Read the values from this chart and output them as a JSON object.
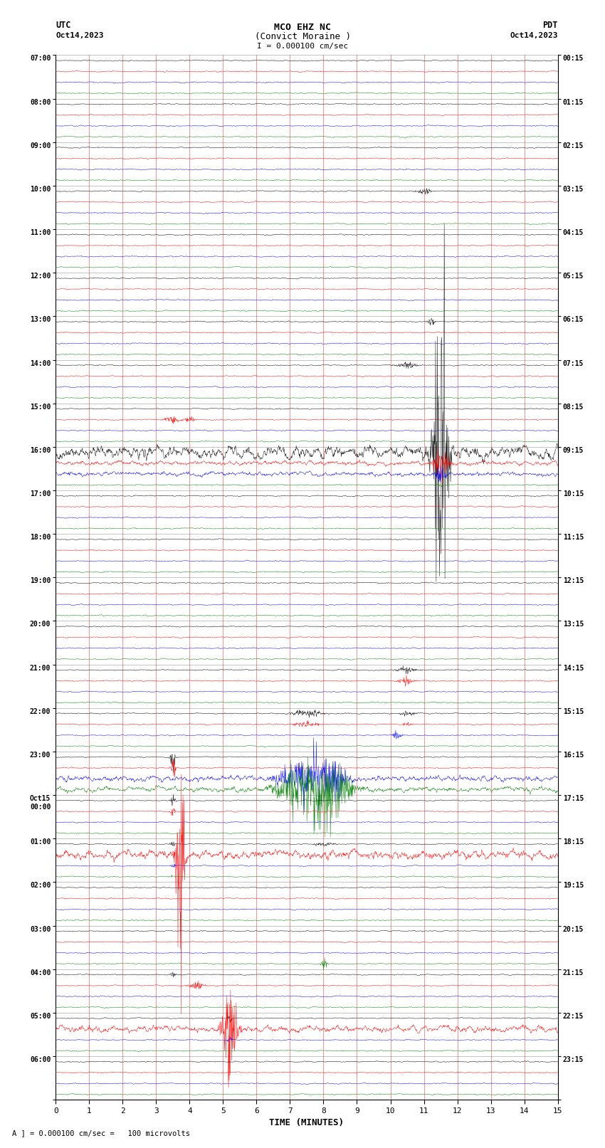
{
  "title_line1": "MCO EHZ NC",
  "title_line2": "(Convict Moraine )",
  "title_line3": "I = 0.000100 cm/sec",
  "left_header": "UTC",
  "left_date": "Oct14,2023",
  "right_header": "PDT",
  "right_date": "Oct14,2023",
  "xlabel": "TIME (MINUTES)",
  "footer": "A ] = 0.000100 cm/sec =   100 microvolts",
  "xmin": 0,
  "xmax": 15,
  "background_color": "#ffffff",
  "trace_colors": [
    "black",
    "red",
    "blue",
    "green"
  ],
  "hour_labels_left": [
    "07:00",
    "08:00",
    "09:00",
    "10:00",
    "11:00",
    "12:00",
    "13:00",
    "14:00",
    "15:00",
    "16:00",
    "17:00",
    "18:00",
    "19:00",
    "20:00",
    "21:00",
    "22:00",
    "23:00",
    "Oct15\n00:00",
    "01:00",
    "02:00",
    "03:00",
    "04:00",
    "05:00",
    "06:00"
  ],
  "hour_labels_right": [
    "00:15",
    "01:15",
    "02:15",
    "03:15",
    "04:15",
    "05:15",
    "06:15",
    "07:15",
    "08:15",
    "09:15",
    "10:15",
    "11:15",
    "12:15",
    "13:15",
    "14:15",
    "15:15",
    "16:15",
    "17:15",
    "18:15",
    "19:15",
    "20:15",
    "21:15",
    "22:15",
    "23:15"
  ],
  "n_hours": 24,
  "traces_per_hour": 4,
  "seed": 42
}
